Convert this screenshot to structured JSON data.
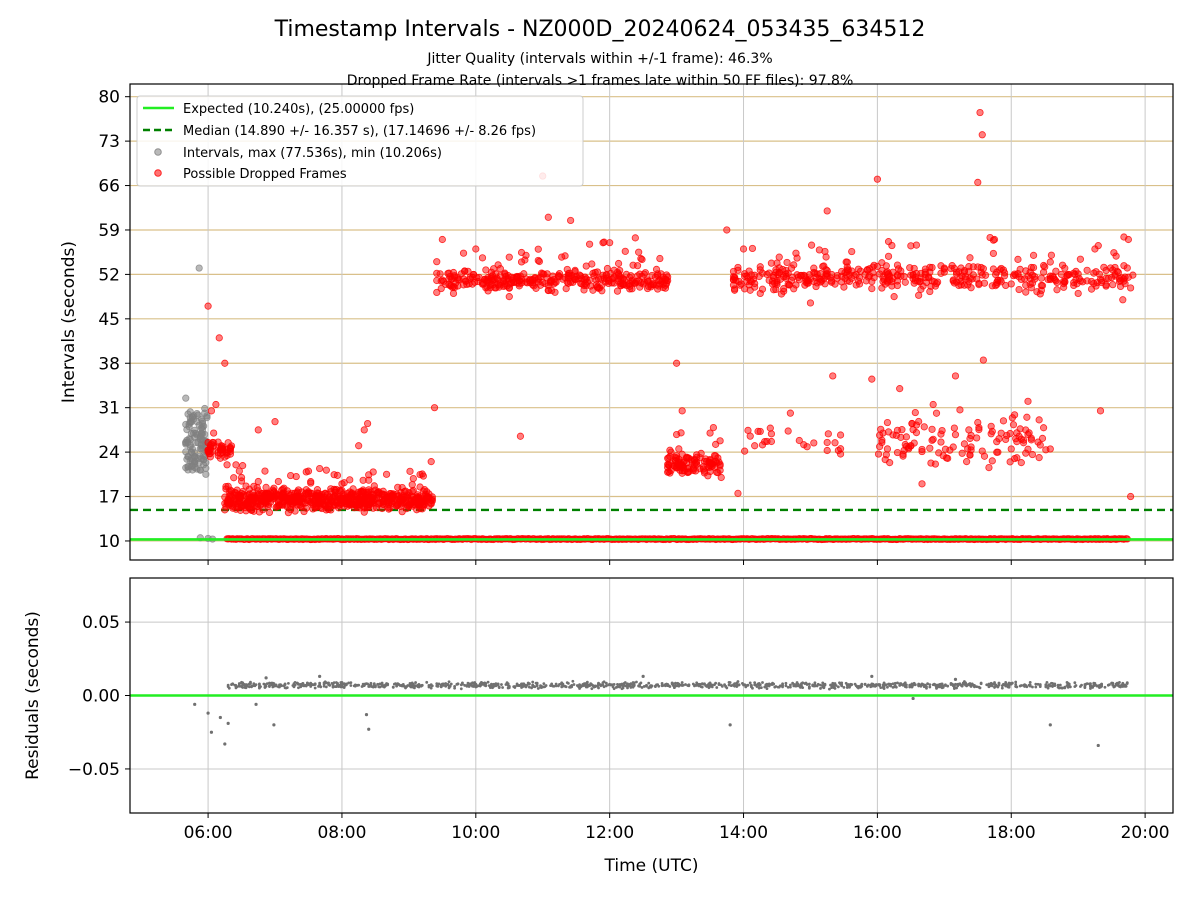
{
  "figure": {
    "title": "Timestamp Intervals - NZ000D_20240624_053435_634512",
    "subtitle_1": "Jitter Quality (intervals within +/-1 frame): 46.3%",
    "subtitle_2": "Dropped Frame Rate (intervals >1 frames late within 50 FF files): 97.8%"
  },
  "colors": {
    "expected_line": "#22ee22",
    "median_line": "#008000",
    "intervals_points": "#808080",
    "dropped_points": "#ff0000",
    "frame_gridlines": "#d9c08a",
    "gridlines": "#c8c8c8",
    "residual_points": "#707070"
  },
  "chart_data": [
    {
      "type": "scatter",
      "ylabel": "Intervals (seconds)",
      "xlim": [
        "04:50",
        "20:25"
      ],
      "ylim": [
        7,
        82
      ],
      "yticks": [
        10,
        17,
        24,
        31,
        38,
        45,
        52,
        59,
        66,
        73,
        80
      ],
      "x_ticks_time": [
        "06:00",
        "08:00",
        "10:00",
        "12:00",
        "14:00",
        "16:00",
        "18:00",
        "20:00"
      ],
      "legend_position": "upper left",
      "legend": [
        {
          "kind": "line",
          "label": "Expected (10.240s), (25.00000 fps)"
        },
        {
          "kind": "dashed",
          "label": "Median (14.890 +/- 16.357 s), (17.14696 +/- 8.26 fps)"
        },
        {
          "kind": "point-gray",
          "label": "Intervals, max (77.536s), min (10.206s)"
        },
        {
          "kind": "point-red",
          "label": "Possible Dropped Frames"
        }
      ],
      "expected_value": 10.24,
      "median_value": 14.89,
      "series": [
        {
          "name": "Intervals, max (77.536s), min (10.206s)",
          "points": [
            {
              "t": "05:40",
              "y": 32.5
            },
            {
              "t": "05:42",
              "y": 30.0
            },
            {
              "t": "05:43",
              "y": 28.0
            },
            {
              "t": "05:44",
              "y": 26.0
            },
            {
              "t": "05:45",
              "y": 24.0
            },
            {
              "t": "05:46",
              "y": 29.5
            },
            {
              "t": "05:47",
              "y": 27.0
            },
            {
              "t": "05:48",
              "y": 22.5
            },
            {
              "t": "05:49",
              "y": 25.5
            },
            {
              "t": "05:50",
              "y": 28.8
            },
            {
              "t": "05:51",
              "y": 23.0
            },
            {
              "t": "05:52",
              "y": 53.0
            },
            {
              "t": "05:53",
              "y": 26.5
            },
            {
              "t": "05:54",
              "y": 24.5
            },
            {
              "t": "05:55",
              "y": 27.5
            },
            {
              "t": "05:56",
              "y": 22.0
            },
            {
              "t": "05:57",
              "y": 25.0
            },
            {
              "t": "05:58",
              "y": 20.5
            },
            {
              "t": "05:53",
              "y": 10.5
            },
            {
              "t": "06:00",
              "y": 10.4
            },
            {
              "t": "06:04",
              "y": 10.3
            }
          ]
        },
        {
          "name": "Possible Dropped Frames",
          "points": [
            {
              "t": "06:00",
              "y": 47.0
            },
            {
              "t": "06:03",
              "y": 30.5
            },
            {
              "t": "06:05",
              "y": 27.0
            },
            {
              "t": "06:07",
              "y": 31.5
            },
            {
              "t": "06:10",
              "y": 42.0
            },
            {
              "t": "06:12",
              "y": 25.0
            },
            {
              "t": "06:15",
              "y": 38.0
            },
            {
              "t": "06:17",
              "y": 22.0
            },
            {
              "t": "06:20",
              "y": 18.0
            },
            {
              "t": "06:25",
              "y": 15.0
            },
            {
              "t": "06:30",
              "y": 20.0
            },
            {
              "t": "06:40",
              "y": 16.5
            },
            {
              "t": "06:45",
              "y": 27.5
            },
            {
              "t": "06:55",
              "y": 14.5
            },
            {
              "t": "07:00",
              "y": 28.8
            },
            {
              "t": "07:15",
              "y": 17.5
            },
            {
              "t": "07:30",
              "y": 21.0
            },
            {
              "t": "07:45",
              "y": 15.5
            },
            {
              "t": "08:00",
              "y": 19.0
            },
            {
              "t": "08:15",
              "y": 25.0
            },
            {
              "t": "08:20",
              "y": 27.5
            },
            {
              "t": "08:23",
              "y": 28.5
            },
            {
              "t": "08:40",
              "y": 20.5
            },
            {
              "t": "08:55",
              "y": 16.0
            },
            {
              "t": "09:10",
              "y": 18.5
            },
            {
              "t": "09:20",
              "y": 22.5
            },
            {
              "t": "09:23",
              "y": 31.0
            },
            {
              "t": "09:25",
              "y": 54.0
            },
            {
              "t": "09:30",
              "y": 57.5
            },
            {
              "t": "09:40",
              "y": 49.0
            },
            {
              "t": "09:50",
              "y": 52.5
            },
            {
              "t": "10:00",
              "y": 56.0
            },
            {
              "t": "10:10",
              "y": 50.0
            },
            {
              "t": "10:20",
              "y": 53.5
            },
            {
              "t": "10:30",
              "y": 48.5
            },
            {
              "t": "10:40",
              "y": 26.5
            },
            {
              "t": "10:45",
              "y": 55.0
            },
            {
              "t": "11:00",
              "y": 67.5
            },
            {
              "t": "11:05",
              "y": 61.0
            },
            {
              "t": "11:20",
              "y": 51.5
            },
            {
              "t": "11:25",
              "y": 60.5
            },
            {
              "t": "11:45",
              "y": 49.5
            },
            {
              "t": "12:00",
              "y": 57.0
            },
            {
              "t": "12:15",
              "y": 52.0
            },
            {
              "t": "12:30",
              "y": 50.5
            },
            {
              "t": "12:45",
              "y": 54.5
            },
            {
              "t": "12:55",
              "y": 24.0
            },
            {
              "t": "13:00",
              "y": 38.0
            },
            {
              "t": "13:05",
              "y": 30.5
            },
            {
              "t": "13:15",
              "y": 21.5
            },
            {
              "t": "13:30",
              "y": 27.0
            },
            {
              "t": "13:40",
              "y": 20.0
            },
            {
              "t": "13:45",
              "y": 59.0
            },
            {
              "t": "13:55",
              "y": 17.5
            },
            {
              "t": "14:00",
              "y": 56.0
            },
            {
              "t": "14:10",
              "y": 25.0
            },
            {
              "t": "14:15",
              "y": 49.0
            },
            {
              "t": "14:30",
              "y": 51.0
            },
            {
              "t": "14:45",
              "y": 53.5
            },
            {
              "t": "15:00",
              "y": 47.5
            },
            {
              "t": "15:15",
              "y": 62.0
            },
            {
              "t": "15:20",
              "y": 36.0
            },
            {
              "t": "15:30",
              "y": 50.0
            },
            {
              "t": "15:45",
              "y": 52.5
            },
            {
              "t": "15:55",
              "y": 35.5
            },
            {
              "t": "16:00",
              "y": 67.0
            },
            {
              "t": "16:05",
              "y": 27.0
            },
            {
              "t": "16:15",
              "y": 48.5
            },
            {
              "t": "16:20",
              "y": 34.0
            },
            {
              "t": "16:30",
              "y": 56.5
            },
            {
              "t": "16:40",
              "y": 19.0
            },
            {
              "t": "16:50",
              "y": 31.5
            },
            {
              "t": "17:00",
              "y": 53.0
            },
            {
              "t": "17:10",
              "y": 36.0
            },
            {
              "t": "17:20",
              "y": 22.5
            },
            {
              "t": "17:30",
              "y": 66.5
            },
            {
              "t": "17:32",
              "y": 77.5
            },
            {
              "t": "17:34",
              "y": 74.0
            },
            {
              "t": "17:35",
              "y": 38.5
            },
            {
              "t": "17:45",
              "y": 57.5
            },
            {
              "t": "17:55",
              "y": 26.0
            },
            {
              "t": "18:00",
              "y": 50.5
            },
            {
              "t": "18:15",
              "y": 32.0
            },
            {
              "t": "18:20",
              "y": 55.0
            },
            {
              "t": "18:35",
              "y": 24.5
            },
            {
              "t": "18:45",
              "y": 52.0
            },
            {
              "t": "19:00",
              "y": 49.0
            },
            {
              "t": "19:15",
              "y": 56.0
            },
            {
              "t": "19:20",
              "y": 30.5
            },
            {
              "t": "19:30",
              "y": 51.5
            },
            {
              "t": "19:40",
              "y": 48.0
            },
            {
              "t": "19:45",
              "y": 57.5
            },
            {
              "t": "19:47",
              "y": 17.0
            }
          ]
        }
      ]
    },
    {
      "type": "scatter",
      "ylabel": "Residuals (seconds)",
      "xlabel": "Time (UTC)",
      "xlim": [
        "04:50",
        "20:25"
      ],
      "ylim": [
        -0.08,
        0.08
      ],
      "yticks": [
        -0.05,
        0.0,
        0.05
      ],
      "ytick_labels": [
        "−0.05",
        "0.00",
        "0.05"
      ],
      "x_ticks_time": [
        "06:00",
        "08:00",
        "10:00",
        "12:00",
        "14:00",
        "16:00",
        "18:00",
        "20:00"
      ],
      "zero_line": 0.0,
      "points": [
        {
          "t": "05:48",
          "y": -0.006
        },
        {
          "t": "06:00",
          "y": -0.012
        },
        {
          "t": "06:03",
          "y": -0.025
        },
        {
          "t": "06:11",
          "y": -0.015
        },
        {
          "t": "06:15",
          "y": -0.033
        },
        {
          "t": "06:18",
          "y": -0.019
        },
        {
          "t": "06:43",
          "y": -0.006
        },
        {
          "t": "06:59",
          "y": -0.02
        },
        {
          "t": "08:22",
          "y": -0.013
        },
        {
          "t": "08:24",
          "y": -0.023
        },
        {
          "t": "13:48",
          "y": -0.02
        },
        {
          "t": "16:32",
          "y": -0.002
        },
        {
          "t": "18:35",
          "y": -0.02
        },
        {
          "t": "19:18",
          "y": -0.034
        },
        {
          "t": "06:52",
          "y": 0.012
        },
        {
          "t": "07:40",
          "y": 0.013
        },
        {
          "t": "12:30",
          "y": 0.013
        },
        {
          "t": "15:55",
          "y": 0.013
        },
        {
          "t": "17:10",
          "y": 0.011
        }
      ],
      "dense_band": {
        "t_start": "06:18",
        "t_end": "19:45",
        "center": 0.007,
        "spread": 0.006
      }
    }
  ]
}
